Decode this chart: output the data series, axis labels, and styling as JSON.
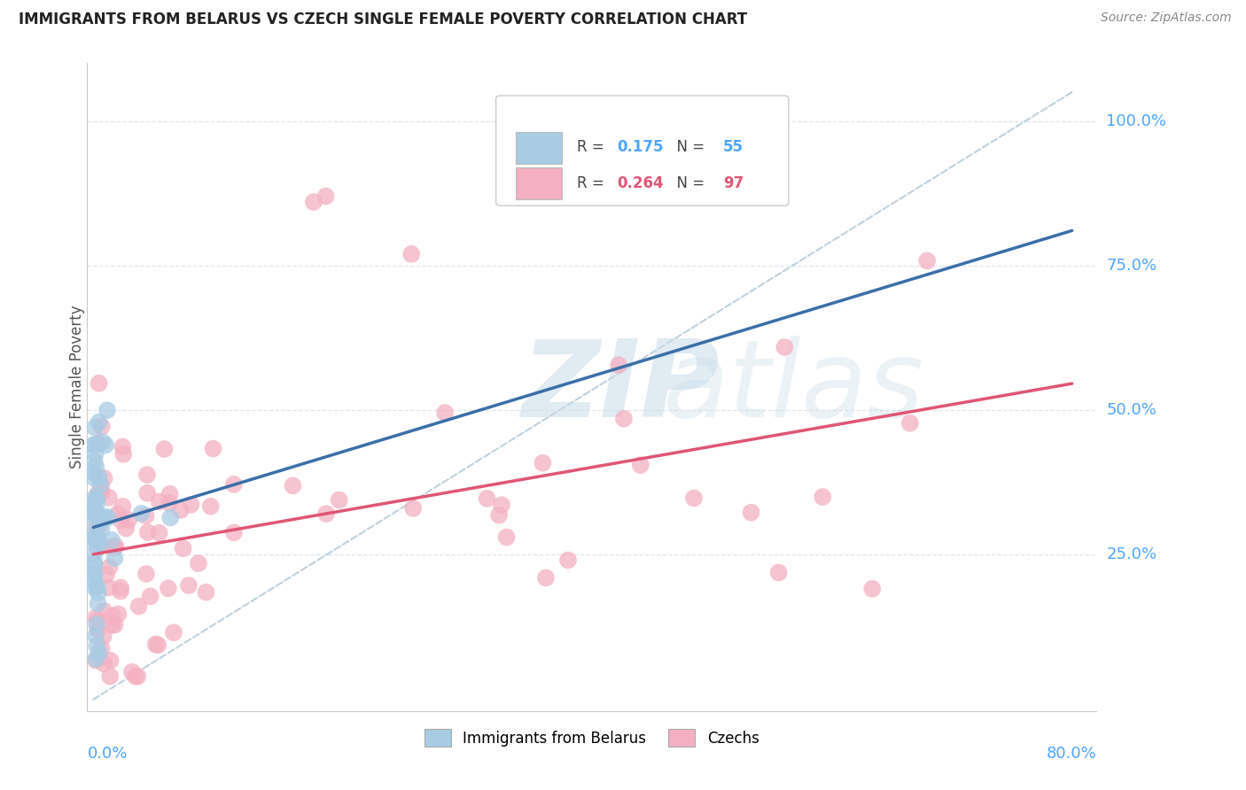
{
  "title": "IMMIGRANTS FROM BELARUS VS CZECH SINGLE FEMALE POVERTY CORRELATION CHART",
  "source": "Source: ZipAtlas.com",
  "axis_label_color": "#4da6ff",
  "ylabel": "Single Female Poverty",
  "x_label_bottom_left": "0.0%",
  "x_label_bottom_right": "80.0%",
  "y_tick_labels": [
    "100.0%",
    "75.0%",
    "50.0%",
    "25.0%"
  ],
  "y_tick_values": [
    1.0,
    0.75,
    0.5,
    0.25
  ],
  "x_lim": [
    -0.005,
    0.82
  ],
  "y_lim": [
    -0.02,
    1.1
  ],
  "legend_r1_val": "0.175",
  "legend_n1_val": "55",
  "legend_r2_val": "0.264",
  "legend_n2_val": "97",
  "blue_color": "#a8cce4",
  "pink_color": "#f4b0c2",
  "blue_line_color": "#3a6fa8",
  "pink_line_color": "#e05575",
  "dashed_line_color": "#b8ccd8",
  "watermark_zip": "ZIP",
  "watermark_atlas": "atlas",
  "legend_label_blue": "Immigrants from Belarus",
  "legend_label_pink": "Czechs",
  "title_color": "#222222",
  "source_color": "#888888",
  "ylabel_color": "#555555",
  "grid_color": "#d8dfe8",
  "spine_color": "#cccccc"
}
